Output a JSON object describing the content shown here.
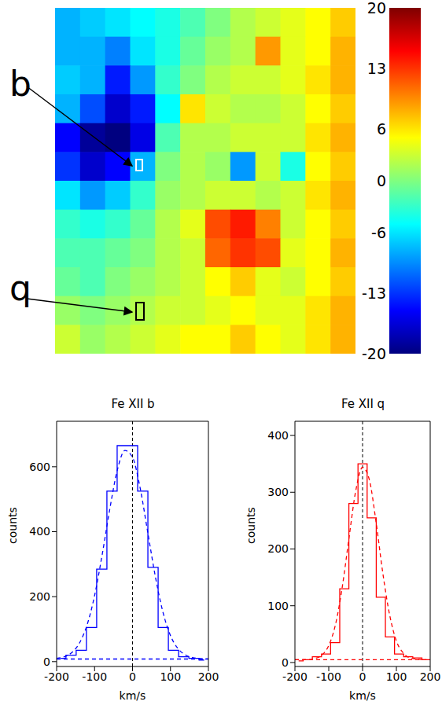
{
  "chart_data": [
    {
      "type": "heatmap",
      "tick_labels": false,
      "annotations": [
        "b",
        "q"
      ],
      "cells": [
        [
          -8,
          -7,
          -6,
          -5,
          -4,
          -2,
          0,
          2,
          3,
          4,
          5,
          7
        ],
        [
          -8,
          -8,
          -10,
          -6,
          -4,
          -1,
          1,
          2,
          9,
          4,
          5,
          8
        ],
        [
          -7,
          -8,
          -14,
          -9,
          -3,
          0,
          2,
          3,
          3,
          4,
          6,
          8
        ],
        [
          -8,
          -12,
          -17,
          -14,
          -5,
          6,
          3,
          2,
          2,
          3,
          5,
          7
        ],
        [
          -15,
          -19,
          -20,
          -16,
          -2,
          2,
          2,
          3,
          3,
          3,
          6,
          8
        ],
        [
          -13,
          -17,
          -15,
          -8,
          0,
          2,
          1,
          -9,
          3,
          -4,
          5,
          7
        ],
        [
          -6,
          -9,
          -7,
          -3,
          1,
          2,
          3,
          3,
          2,
          3,
          6,
          8
        ],
        [
          -3,
          -4,
          -3,
          -1,
          2,
          4,
          12,
          14,
          10,
          3,
          5,
          7
        ],
        [
          -2,
          -2,
          -1,
          0,
          2,
          3,
          11,
          13,
          12,
          4,
          5,
          8
        ],
        [
          -1,
          -2,
          0,
          1,
          2,
          3,
          5,
          7,
          4,
          3,
          5,
          7
        ],
        [
          1,
          0,
          1,
          2,
          3,
          3,
          4,
          5,
          4,
          4,
          6,
          8
        ],
        [
          3,
          1,
          2,
          3,
          4,
          5,
          5,
          7,
          5,
          4,
          6,
          8
        ]
      ],
      "colorbar": {
        "range": [
          -20,
          20
        ],
        "ticks": [
          20,
          13,
          6,
          0,
          -6,
          -13,
          -20
        ]
      }
    },
    {
      "type": "line",
      "title": "Fe XII b",
      "xlabel": "km/s",
      "ylabel": "counts",
      "xlim": [
        -200,
        200
      ],
      "xticks": [
        -200,
        -100,
        0,
        100,
        200
      ],
      "ylim": [
        -15,
        740
      ],
      "yticks": [
        0,
        200,
        400,
        600
      ],
      "color": "#0000ff",
      "vline": 0,
      "series": [
        {
          "type": "step",
          "line_style": "solid",
          "x": [
            -189,
            -162,
            -135,
            -108,
            -81,
            -54,
            -27,
            0,
            27,
            54,
            81,
            108,
            135,
            162,
            189
          ],
          "values": [
            10,
            20,
            35,
            105,
            285,
            525,
            665,
            665,
            525,
            290,
            105,
            35,
            15,
            10,
            5
          ]
        },
        {
          "type": "line",
          "line_style": "dashed",
          "x": [
            -200,
            -180,
            -160,
            -140,
            -120,
            -100,
            -80,
            -60,
            -40,
            -20,
            0,
            20,
            40,
            60,
            80,
            100,
            120,
            140,
            160,
            180,
            200
          ],
          "values": [
            10,
            15,
            28,
            57,
            112,
            203,
            329,
            469,
            590,
            650,
            629,
            535,
            399,
            263,
            153,
            80,
            40,
            20,
            12,
            9,
            8
          ]
        },
        {
          "type": "line",
          "line_style": "dashed",
          "x": [
            -200,
            200
          ],
          "values": [
            8,
            8
          ]
        }
      ]
    },
    {
      "type": "line",
      "title": "Fe XII q",
      "xlabel": "km/s",
      "ylabel": "counts",
      "xlim": [
        -200,
        200
      ],
      "xticks": [
        -200,
        -100,
        0,
        100,
        200
      ],
      "ylim": [
        -7,
        425
      ],
      "yticks": [
        0,
        100,
        200,
        300,
        400
      ],
      "color": "#ff0000",
      "vline": 0,
      "series": [
        {
          "type": "step",
          "line_style": "solid",
          "x": [
            -189,
            -162,
            -135,
            -108,
            -81,
            -54,
            -27,
            0,
            27,
            54,
            81,
            108,
            135,
            162,
            189
          ],
          "values": [
            3,
            5,
            10,
            15,
            35,
            130,
            280,
            350,
            255,
            115,
            45,
            15,
            10,
            8,
            5
          ]
        },
        {
          "type": "line",
          "line_style": "dashed",
          "x": [
            -200,
            -180,
            -160,
            -140,
            -120,
            -100,
            -80,
            -60,
            -40,
            -20,
            0,
            20,
            40,
            60,
            80,
            100,
            120,
            140,
            160,
            180,
            200
          ],
          "values": [
            5,
            5,
            5,
            7,
            13,
            30,
            67,
            133,
            220,
            303,
            344,
            322,
            247,
            157,
            84,
            38,
            17,
            8,
            6,
            5,
            5
          ]
        },
        {
          "type": "line",
          "line_style": "dashed",
          "x": [
            -200,
            200
          ],
          "values": [
            5,
            5
          ]
        }
      ]
    }
  ]
}
